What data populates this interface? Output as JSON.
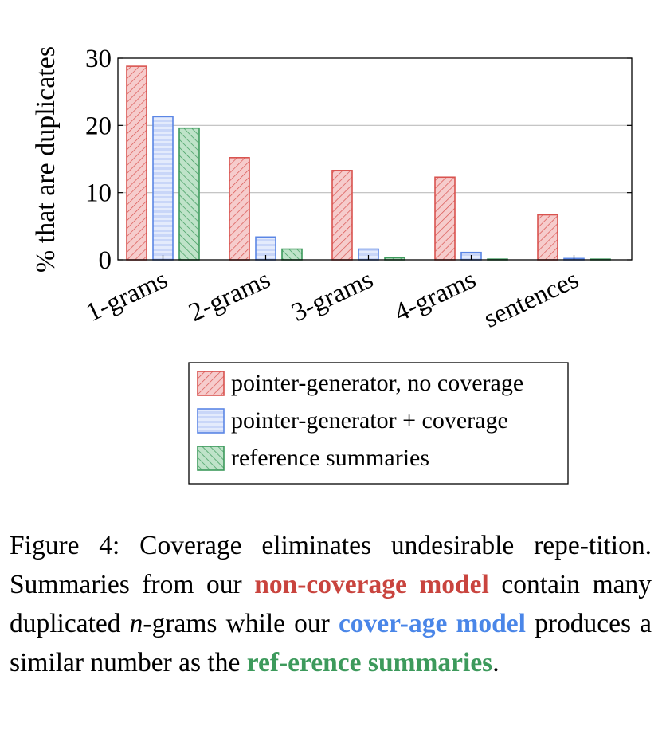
{
  "chart_data": {
    "type": "bar",
    "ylabel": "% that are duplicates",
    "ylim": [
      0,
      30
    ],
    "yticks": [
      0,
      10,
      20,
      30
    ],
    "grid": "horizontal",
    "categories": [
      "1-grams",
      "2-grams",
      "3-grams",
      "4-grams",
      "sentences"
    ],
    "series": [
      {
        "name": "pointer-generator, no coverage",
        "color": "#d9534f",
        "fill": "#f6cccc",
        "pattern": "diagonal-up",
        "values": [
          28.8,
          15.2,
          13.3,
          12.3,
          6.7
        ]
      },
      {
        "name": "pointer-generator + coverage",
        "color": "#5b86e5",
        "fill": "#d6e0fb",
        "pattern": "horizontal",
        "values": [
          21.3,
          3.4,
          1.6,
          1.1,
          0.2
        ]
      },
      {
        "name": "reference summaries",
        "color": "#3d9a5c",
        "fill": "#bfe3c9",
        "pattern": "diagonal-down",
        "values": [
          19.6,
          1.6,
          0.3,
          0.1,
          0.1
        ]
      }
    ],
    "legend_position": "bottom"
  },
  "caption": {
    "lead": "Figure 4:  Coverage eliminates undesirable repe-tition. Summaries from our ",
    "h1": "non-coverage model",
    "mid1": " contain many duplicated ",
    "ngram_em": "n",
    "mid2": "-grams while our ",
    "h2": "cover-age model",
    "mid3": " produces a similar number as the ",
    "h3": "ref-erence summaries",
    "end": ".",
    "h1_color": "#c9443e",
    "h2_color": "#4a86e8",
    "h3_color": "#3d9a5c"
  }
}
